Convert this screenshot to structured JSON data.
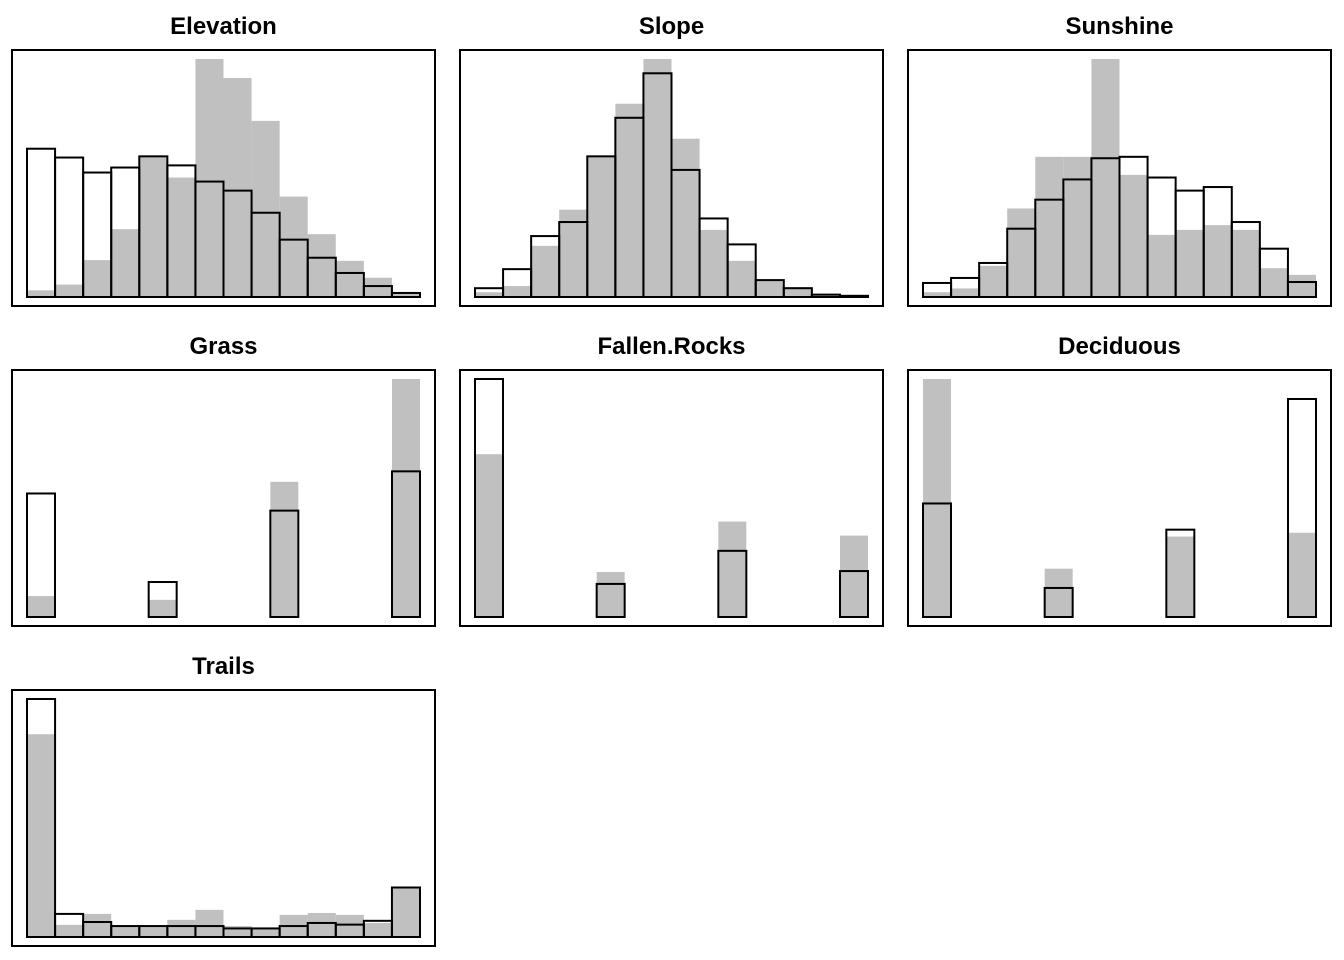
{
  "chart_data": [
    {
      "type": "bar",
      "title": "Elevation",
      "bins": 14,
      "series": [
        {
          "style": "filled",
          "values": [
            2.8,
            5.2,
            15.5,
            28.5,
            59.3,
            50.2,
            100,
            92,
            74,
            42.2,
            26.4,
            15.2,
            8.1,
            2
          ]
        },
        {
          "style": "outline",
          "values": [
            62.3,
            58.6,
            52.3,
            54.4,
            59.1,
            55.3,
            48.5,
            44.7,
            35.4,
            24.1,
            16.5,
            10.1,
            4.6,
            1.7
          ]
        }
      ]
    },
    {
      "type": "bar",
      "title": "Slope",
      "bins": 14,
      "series": [
        {
          "style": "filled",
          "values": [
            2,
            4.6,
            21.5,
            36.7,
            58.9,
            81.2,
            100,
            66.5,
            28.2,
            15.2,
            7.1,
            4.1,
            1,
            0.5
          ]
        },
        {
          "style": "outline",
          "values": [
            3.7,
            11.7,
            25.6,
            31.5,
            59.1,
            75.3,
            94,
            53.4,
            33,
            22.1,
            7.1,
            3.7,
            1,
            0.5
          ]
        }
      ]
    },
    {
      "type": "bar",
      "title": "Sunshine",
      "bins": 14,
      "series": [
        {
          "style": "filled",
          "values": [
            2,
            3.6,
            13.1,
            37.2,
            58.9,
            58.9,
            100,
            51.3,
            26.1,
            28.2,
            30.2,
            28.2,
            12.1,
            9.3
          ]
        },
        {
          "style": "outline",
          "values": [
            5.9,
            8,
            14.3,
            28.7,
            40.9,
            49.4,
            58.3,
            58.9,
            50.2,
            44.7,
            46.2,
            31.5,
            20.3,
            6.3
          ]
        }
      ]
    },
    {
      "type": "bar",
      "title": "Grass",
      "bins": 4,
      "series": [
        {
          "style": "filled",
          "values": [
            8.8,
            7.2,
            56.8,
            100
          ]
        },
        {
          "style": "outline",
          "values": [
            51.9,
            14.7,
            44.7,
            61.2
          ]
        }
      ]
    },
    {
      "type": "bar",
      "title": "Fallen.Rocks",
      "bins": 4,
      "series": [
        {
          "style": "filled",
          "values": [
            68.4,
            18.9,
            40.1,
            34.2
          ]
        },
        {
          "style": "outline",
          "values": [
            100,
            13.9,
            27.8,
            19.3
          ]
        }
      ]
    },
    {
      "type": "bar",
      "title": "Deciduous",
      "bins": 4,
      "series": [
        {
          "style": "filled",
          "values": [
            100,
            20.3,
            33.8,
            35.4
          ]
        },
        {
          "style": "outline",
          "values": [
            47.7,
            12.2,
            36.7,
            91.6
          ]
        }
      ]
    },
    {
      "type": "bar",
      "title": "Trails",
      "bins": 14,
      "series": [
        {
          "style": "filled",
          "values": [
            85.2,
            5.1,
            9.7,
            4.6,
            4.6,
            7.2,
            11.4,
            4.6,
            3.6,
            9.3,
            10.1,
            9.3,
            5.9,
            20.8
          ]
        },
        {
          "style": "outline",
          "values": [
            100,
            9.7,
            6.3,
            4.6,
            4.6,
            4.6,
            4.6,
            3.6,
            3.6,
            4.6,
            5.9,
            5.2,
            6.8,
            20.8
          ]
        }
      ]
    }
  ],
  "colors": {
    "filled": "#c0c0c0",
    "outline": "#000000",
    "frame": "#000000",
    "background": "#ffffff"
  }
}
